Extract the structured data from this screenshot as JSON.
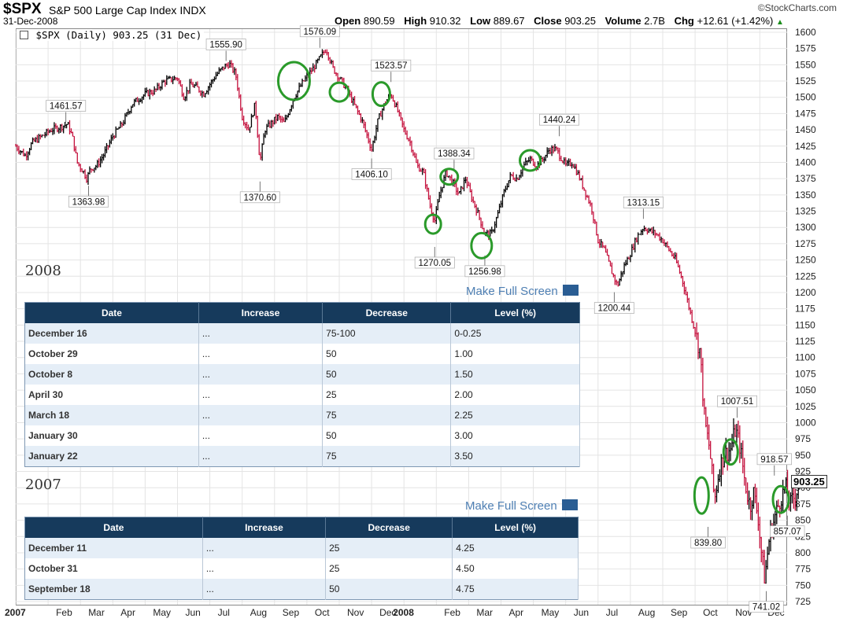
{
  "header": {
    "symbol": "$SPX",
    "description": "S&P 500 Large Cap Index",
    "exchange": "INDX",
    "date": "31-Dec-2008",
    "open_label": "Open",
    "open": "890.59",
    "high_label": "High",
    "high": "910.32",
    "low_label": "Low",
    "low": "889.67",
    "close_label": "Close",
    "close": "903.25",
    "volume_label": "Volume",
    "volume": "2.7B",
    "chg_label": "Chg",
    "chg": "+12.61 (+1.42%)",
    "brand": "©StockCharts.com"
  },
  "legend": "$SPX (Daily) 903.25 (31 Dec)",
  "chart_data": {
    "type": "line",
    "style": "ohlc-bars",
    "ylim": [
      725,
      1600
    ],
    "y_ticks": [
      725,
      750,
      775,
      800,
      825,
      850,
      875,
      900,
      925,
      950,
      975,
      1000,
      1025,
      1050,
      1075,
      1100,
      1125,
      1150,
      1175,
      1200,
      1225,
      1250,
      1275,
      1300,
      1325,
      1350,
      1375,
      1400,
      1425,
      1450,
      1475,
      1500,
      1525,
      1550,
      1575,
      1600
    ],
    "x_labels": [
      "2007",
      "Feb",
      "Mar",
      "Apr",
      "May",
      "Jun",
      "Jul",
      "Aug",
      "Sep",
      "Oct",
      "Nov",
      "Dec",
      "2008",
      "Feb",
      "Mar",
      "Apr",
      "May",
      "Jun",
      "Jul",
      "Aug",
      "Sep",
      "Oct",
      "Nov",
      "Dec"
    ],
    "x_label_months": [
      0,
      1,
      2,
      3,
      4,
      5,
      6,
      7,
      8,
      9,
      10,
      11,
      12,
      13,
      14,
      15,
      16,
      17,
      18,
      19,
      20,
      21,
      22,
      23
    ],
    "grid": true,
    "series_points": [
      [
        0.0,
        1425
      ],
      [
        0.3,
        1410
      ],
      [
        0.5,
        1430
      ],
      [
        0.8,
        1440
      ],
      [
        1.1,
        1450
      ],
      [
        1.4,
        1455
      ],
      [
        1.6,
        1459
      ],
      [
        1.75,
        1440
      ],
      [
        1.9,
        1400
      ],
      [
        2.1,
        1385
      ],
      [
        2.2,
        1375
      ],
      [
        2.3,
        1390
      ],
      [
        2.5,
        1395
      ],
      [
        2.7,
        1410
      ],
      [
        3.0,
        1440
      ],
      [
        3.3,
        1460
      ],
      [
        3.6,
        1490
      ],
      [
        4.0,
        1505
      ],
      [
        4.3,
        1510
      ],
      [
        4.6,
        1525
      ],
      [
        5.0,
        1530
      ],
      [
        5.2,
        1500
      ],
      [
        5.4,
        1520
      ],
      [
        5.6,
        1515
      ],
      [
        5.8,
        1505
      ],
      [
        6.0,
        1520
      ],
      [
        6.2,
        1535
      ],
      [
        6.4,
        1545
      ],
      [
        6.6,
        1552
      ],
      [
        6.8,
        1535
      ],
      [
        7.0,
        1470
      ],
      [
        7.2,
        1450
      ],
      [
        7.4,
        1490
      ],
      [
        7.55,
        1400
      ],
      [
        7.7,
        1450
      ],
      [
        7.9,
        1460
      ],
      [
        8.1,
        1470
      ],
      [
        8.3,
        1460
      ],
      [
        8.6,
        1500
      ],
      [
        8.9,
        1525
      ],
      [
        9.2,
        1545
      ],
      [
        9.4,
        1560
      ],
      [
        9.6,
        1575
      ],
      [
        9.8,
        1545
      ],
      [
        10.0,
        1530
      ],
      [
        10.2,
        1515
      ],
      [
        10.5,
        1485
      ],
      [
        10.7,
        1465
      ],
      [
        11.0,
        1420
      ],
      [
        11.2,
        1465
      ],
      [
        11.4,
        1490
      ],
      [
        11.6,
        1505
      ],
      [
        11.8,
        1480
      ],
      [
        12.0,
        1450
      ],
      [
        12.2,
        1430
      ],
      [
        12.4,
        1395
      ],
      [
        12.6,
        1385
      ],
      [
        12.8,
        1335
      ],
      [
        12.95,
        1310
      ],
      [
        13.1,
        1350
      ],
      [
        13.3,
        1385
      ],
      [
        13.5,
        1370
      ],
      [
        13.7,
        1350
      ],
      [
        13.9,
        1375
      ],
      [
        14.1,
        1345
      ],
      [
        14.3,
        1320
      ],
      [
        14.5,
        1290
      ],
      [
        14.7,
        1290
      ],
      [
        14.9,
        1320
      ],
      [
        15.1,
        1355
      ],
      [
        15.3,
        1380
      ],
      [
        15.5,
        1375
      ],
      [
        15.7,
        1395
      ],
      [
        15.9,
        1405
      ],
      [
        16.1,
        1395
      ],
      [
        16.3,
        1405
      ],
      [
        16.5,
        1420
      ],
      [
        16.7,
        1420
      ],
      [
        16.8,
        1412
      ],
      [
        17.0,
        1395
      ],
      [
        17.2,
        1400
      ],
      [
        17.4,
        1380
      ],
      [
        17.6,
        1355
      ],
      [
        17.8,
        1330
      ],
      [
        18.0,
        1280
      ],
      [
        18.2,
        1265
      ],
      [
        18.4,
        1235
      ],
      [
        18.6,
        1210
      ],
      [
        18.8,
        1240
      ],
      [
        19.0,
        1260
      ],
      [
        19.2,
        1285
      ],
      [
        19.4,
        1300
      ],
      [
        19.6,
        1295
      ],
      [
        19.8,
        1290
      ],
      [
        20.0,
        1280
      ],
      [
        20.2,
        1265
      ],
      [
        20.4,
        1250
      ],
      [
        20.6,
        1220
      ],
      [
        20.8,
        1180
      ],
      [
        21.0,
        1140
      ],
      [
        21.15,
        1110
      ],
      [
        21.3,
        1000
      ],
      [
        21.45,
        960
      ],
      [
        21.6,
        880
      ],
      [
        21.75,
        930
      ],
      [
        21.9,
        950
      ],
      [
        22.1,
        960
      ],
      [
        22.25,
        990
      ],
      [
        22.4,
        960
      ],
      [
        22.55,
        905
      ],
      [
        22.7,
        870
      ],
      [
        22.8,
        895
      ],
      [
        22.95,
        855
      ],
      [
        23.05,
        800
      ],
      [
        23.15,
        760
      ],
      [
        23.3,
        825
      ],
      [
        23.5,
        860
      ],
      [
        23.65,
        885
      ],
      [
        23.8,
        900
      ],
      [
        23.95,
        875
      ],
      [
        24.1,
        890
      ],
      [
        24.2,
        903
      ]
    ]
  },
  "peak_labels": [
    {
      "text": "1461.57",
      "m": 1.55,
      "v": 1461.57,
      "pos": "above"
    },
    {
      "text": "1363.98",
      "m": 2.25,
      "v": 1363.98,
      "pos": "below"
    },
    {
      "text": "1555.90",
      "m": 6.5,
      "v": 1555.9,
      "pos": "above"
    },
    {
      "text": "1370.60",
      "m": 7.55,
      "v": 1370.6,
      "pos": "below"
    },
    {
      "text": "1576.09",
      "m": 9.4,
      "v": 1576.09,
      "pos": "above"
    },
    {
      "text": "1406.10",
      "m": 11.0,
      "v": 1406.1,
      "pos": "below"
    },
    {
      "text": "1523.57",
      "m": 11.6,
      "v": 1523.57,
      "pos": "above"
    },
    {
      "text": "1270.05",
      "m": 12.95,
      "v": 1270.05,
      "pos": "below"
    },
    {
      "text": "1388.34",
      "m": 13.55,
      "v": 1388.34,
      "pos": "above"
    },
    {
      "text": "1256.98",
      "m": 14.5,
      "v": 1256.98,
      "pos": "below"
    },
    {
      "text": "1440.24",
      "m": 16.8,
      "v": 1440.24,
      "pos": "above"
    },
    {
      "text": "1200.44",
      "m": 18.5,
      "v": 1200.44,
      "pos": "below"
    },
    {
      "text": "1313.15",
      "m": 19.4,
      "v": 1313.15,
      "pos": "above"
    },
    {
      "text": "1007.51",
      "m": 22.3,
      "v": 1007.51,
      "pos": "above"
    },
    {
      "text": "839.80",
      "m": 21.4,
      "v": 839.8,
      "pos": "below"
    },
    {
      "text": "918.57",
      "m": 23.45,
      "v": 918.57,
      "pos": "above"
    },
    {
      "text": "857.07",
      "m": 23.85,
      "v": 857.07,
      "pos": "below"
    },
    {
      "text": "741.02",
      "m": 23.2,
      "v": 741.02,
      "pos": "below"
    }
  ],
  "circles": [
    {
      "m": 8.6,
      "v": 1525
    },
    {
      "m": 10.0,
      "v": 1508
    },
    {
      "m": 11.3,
      "v": 1505
    },
    {
      "m": 13.4,
      "v": 1378
    },
    {
      "m": 12.9,
      "v": 1305
    },
    {
      "m": 14.4,
      "v": 1272
    },
    {
      "m": 15.9,
      "v": 1403
    },
    {
      "m": 21.2,
      "v": 888
    },
    {
      "m": 22.1,
      "v": 955
    },
    {
      "m": 23.65,
      "v": 882
    }
  ],
  "last_value": "903.25",
  "tables": [
    {
      "year": "2008",
      "make_full_screen": "Make Full Screen",
      "columns": [
        "Date",
        "Increase",
        "Decrease",
        "Level (%)"
      ],
      "rows": [
        [
          "December 16",
          "...",
          "75-100",
          "0-0.25"
        ],
        [
          "October 29",
          "...",
          "50",
          "1.00"
        ],
        [
          "October 8",
          "...",
          "50",
          "1.50"
        ],
        [
          "April 30",
          "...",
          "25",
          "2.00"
        ],
        [
          "March 18",
          "...",
          "75",
          "2.25"
        ],
        [
          "January 30",
          "...",
          "50",
          "3.00"
        ],
        [
          "January 22",
          "...",
          "75",
          "3.50"
        ]
      ]
    },
    {
      "year": "2007",
      "make_full_screen": "Make Full Screen",
      "columns": [
        "Date",
        "Increase",
        "Decrease",
        "Level (%)"
      ],
      "rows": [
        [
          "December 11",
          "...",
          "25",
          "4.25"
        ],
        [
          "October 31",
          "...",
          "25",
          "4.50"
        ],
        [
          "September 18",
          "...",
          "50",
          "4.75"
        ]
      ]
    }
  ],
  "colors": {
    "up_bar": "#000000",
    "down_bar": "#c4103c",
    "circle": "#2a9a2a",
    "table_header": "#163a5c"
  }
}
